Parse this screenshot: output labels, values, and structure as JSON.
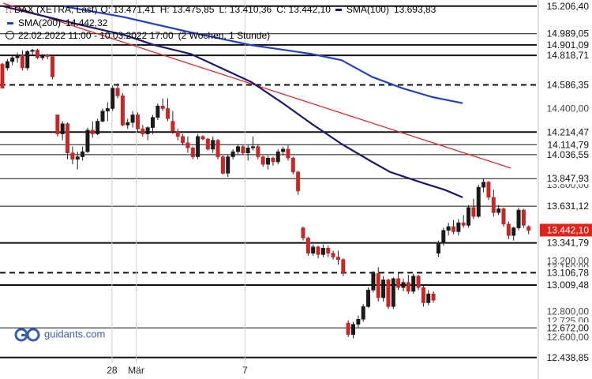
{
  "header": {
    "instrument": "DAX (XETRA, Last)",
    "open": "O: 13.471,41",
    "high": "H: 13.475,85",
    "low": "L: 13.410,36",
    "close": "C: 13.442,10",
    "sma100_label": "SMA(100)",
    "sma100_value": "13.693,83",
    "sma200_label": "SMA(200)",
    "sma200_value": "14.442,32",
    "range": "22.02.2022 11:00 - 10.03.2022 17:00",
    "interval": "(2 Wochen, 1 Stunde)"
  },
  "watermark": {
    "text": "guidants.com"
  },
  "colors": {
    "bull": "#1a1a1a",
    "bear": "#c62828",
    "sma100": "#1a1a6e",
    "sma200": "#2241c8",
    "trend": "#e02a2a",
    "last_price_bg": "#e0231b"
  },
  "chart_data": {
    "type": "candlestick",
    "ylim": [
      12400,
      15230
    ],
    "x_ticks": [
      {
        "label": "28",
        "index": 18
      },
      {
        "label": "Mär",
        "index": 22
      },
      {
        "label": "7",
        "index": 40
      }
    ],
    "y_tick_labels": [
      {
        "v": 14400.0,
        "label": "14.400,00"
      },
      {
        "v": 14050.0,
        "label": "14.050,00"
      },
      {
        "v": 13800.0,
        "label": "13.800,00"
      },
      {
        "v": 13200.0,
        "label": "13.200,00"
      },
      {
        "v": 13150.0,
        "label": "13.150,00"
      },
      {
        "v": 12800.0,
        "label": "12.800,00"
      },
      {
        "v": 12725.0,
        "label": "12.725,00"
      },
      {
        "v": 12600.0,
        "label": "12.600,00"
      }
    ],
    "levels": [
      {
        "v": 15206.4,
        "label": "15.206,40",
        "style": "solid",
        "weight": 2
      },
      {
        "v": 14989.05,
        "label": "14.989,05",
        "style": "solid",
        "weight": 1
      },
      {
        "v": 14901.09,
        "label": "14.901,09",
        "style": "solid",
        "weight": 2
      },
      {
        "v": 14818.71,
        "label": "14.818,71",
        "style": "solid",
        "weight": 2
      },
      {
        "v": 14586.35,
        "label": "14.586,35",
        "style": "dashed",
        "weight": 2
      },
      {
        "v": 14214.47,
        "label": "14.214,47",
        "style": "solid",
        "weight": 2
      },
      {
        "v": 14114.79,
        "label": "14.114,79",
        "style": "solid",
        "weight": 1
      },
      {
        "v": 14036.55,
        "label": "14.036,55",
        "style": "solid",
        "weight": 1
      },
      {
        "v": 13847.93,
        "label": "13.847,93",
        "style": "solid",
        "weight": 1
      },
      {
        "v": 13631.12,
        "label": "13.631,12",
        "style": "solid",
        "weight": 1
      },
      {
        "v": 13341.79,
        "label": "13.341,79",
        "style": "solid",
        "weight": 2
      },
      {
        "v": 13106.78,
        "label": "13.106,78",
        "style": "dashed",
        "weight": 2
      },
      {
        "v": 13009.48,
        "label": "13.009,48",
        "style": "solid",
        "weight": 2
      },
      {
        "v": 12672.0,
        "label": "12.672,00",
        "style": "solid",
        "weight": 1
      },
      {
        "v": 12438.85,
        "label": "12.438,85",
        "style": "solid",
        "weight": 2
      }
    ],
    "last_price": {
      "v": 13442.1,
      "label": "13.442,10"
    },
    "sma100": [
      {
        "i": 0,
        "v": 15206
      },
      {
        "i": 10,
        "v": 15090
      },
      {
        "i": 20,
        "v": 14980
      },
      {
        "i": 25,
        "v": 14900
      },
      {
        "i": 31,
        "v": 14830
      },
      {
        "i": 36,
        "v": 14720
      },
      {
        "i": 41,
        "v": 14610
      },
      {
        "i": 46,
        "v": 14450
      },
      {
        "i": 51,
        "v": 14280
      },
      {
        "i": 56,
        "v": 14120
      },
      {
        "i": 61,
        "v": 13980
      },
      {
        "i": 64,
        "v": 13900
      },
      {
        "i": 69,
        "v": 13820
      },
      {
        "i": 73,
        "v": 13760
      },
      {
        "i": 76,
        "v": 13700
      }
    ],
    "sma200": [
      {
        "i": 10,
        "v": 15206
      },
      {
        "i": 20,
        "v": 15120
      },
      {
        "i": 31,
        "v": 15000
      },
      {
        "i": 41,
        "v": 14900
      },
      {
        "i": 51,
        "v": 14830
      },
      {
        "i": 56,
        "v": 14780
      },
      {
        "i": 61,
        "v": 14650
      },
      {
        "i": 66,
        "v": 14560
      },
      {
        "i": 71,
        "v": 14490
      },
      {
        "i": 76,
        "v": 14442
      }
    ],
    "trendline": [
      {
        "i": 0,
        "v": 15230
      },
      {
        "i": 84,
        "v": 13930
      }
    ],
    "candles": [
      [
        14750,
        14760,
        14560,
        14560
      ],
      [
        14720,
        14790,
        14700,
        14770
      ],
      [
        14770,
        14820,
        14740,
        14800
      ],
      [
        14800,
        14840,
        14760,
        14820
      ],
      [
        14820,
        14860,
        14700,
        14720
      ],
      [
        14720,
        14860,
        14700,
        14850
      ],
      [
        14850,
        14870,
        14820,
        14860
      ],
      [
        14860,
        14870,
        14790,
        14800
      ],
      [
        14800,
        14830,
        14780,
        14820
      ],
      [
        14820,
        14830,
        14790,
        14810
      ],
      [
        14810,
        14810,
        14630,
        14650
      ],
      [
        14350,
        14350,
        14180,
        14200
      ],
      [
        14200,
        14300,
        14150,
        14280
      ],
      [
        14280,
        14290,
        14000,
        14050
      ],
      [
        14050,
        14100,
        13960,
        14000
      ],
      [
        14000,
        14060,
        13920,
        14020
      ],
      [
        14020,
        14100,
        13990,
        14060
      ],
      [
        14060,
        14250,
        14050,
        14230
      ],
      [
        14230,
        14300,
        14170,
        14200
      ],
      [
        14200,
        14320,
        14190,
        14300
      ],
      [
        14300,
        14400,
        14290,
        14380
      ],
      [
        14380,
        14450,
        14300,
        14400
      ],
      [
        14400,
        14580,
        14380,
        14560
      ],
      [
        14560,
        14600,
        14480,
        14500
      ],
      [
        14500,
        14520,
        14260,
        14270
      ],
      [
        14270,
        14320,
        14240,
        14290
      ],
      [
        14290,
        14380,
        14250,
        14350
      ],
      [
        14350,
        14370,
        14220,
        14240
      ],
      [
        14240,
        14270,
        14180,
        14200
      ],
      [
        14200,
        14260,
        14150,
        14250
      ],
      [
        14250,
        14350,
        14200,
        14330
      ],
      [
        14330,
        14440,
        14310,
        14420
      ],
      [
        14420,
        14480,
        14380,
        14400
      ],
      [
        14400,
        14480,
        14300,
        14320
      ],
      [
        14300,
        14380,
        14200,
        14220
      ],
      [
        14220,
        14240,
        14150,
        14180
      ],
      [
        14180,
        14200,
        14110,
        14130
      ],
      [
        14130,
        14180,
        14050,
        14090
      ],
      [
        14090,
        14100,
        14000,
        14020
      ],
      [
        14020,
        14200,
        14000,
        14180
      ]
    ],
    "candles_2": [
      [
        14180,
        14190,
        14150,
        14160
      ],
      [
        14160,
        14170,
        14070,
        14080
      ],
      [
        14080,
        14180,
        14050,
        14150
      ],
      [
        14150,
        14160,
        14000,
        14020
      ],
      [
        14020,
        14030,
        13880,
        13890
      ],
      [
        13890,
        14040,
        13860,
        14020
      ],
      [
        14020,
        14080,
        14000,
        14060
      ],
      [
        14060,
        14120,
        14040,
        14100
      ],
      [
        14100,
        14110,
        14040,
        14050
      ],
      [
        14050,
        14110,
        13990,
        14090
      ],
      [
        14090,
        14180,
        14070,
        14100
      ],
      [
        14100,
        14120,
        14000,
        14020
      ],
      [
        14020,
        14030,
        13940,
        13960
      ],
      [
        13960,
        14030,
        13920,
        14010
      ],
      [
        14010,
        14020,
        13950,
        13980
      ],
      [
        13980,
        14080,
        13960,
        14060
      ],
      [
        14060,
        14100,
        14030,
        14080
      ],
      [
        14080,
        14110,
        13990,
        14010
      ],
      [
        14010,
        14020,
        13880,
        13900
      ],
      [
        13900,
        13910,
        13720,
        13750
      ]
    ],
    "candles_3": [
      [
        13460,
        13470,
        13360,
        13380
      ],
      [
        13380,
        13390,
        13240,
        13260
      ],
      [
        13260,
        13330,
        13240,
        13310
      ],
      [
        13310,
        13320,
        13220,
        13250
      ],
      [
        13250,
        13330,
        13230,
        13300
      ],
      [
        13300,
        13320,
        13230,
        13260
      ],
      [
        13260,
        13280,
        13210,
        13230
      ],
      [
        13230,
        13280,
        13170,
        13210
      ],
      [
        13210,
        13220,
        13080,
        13100
      ],
      [
        12710,
        12730,
        12600,
        12620
      ],
      [
        12620,
        12720,
        12590,
        12700
      ],
      [
        12700,
        12770,
        12670,
        12740
      ],
      [
        12740,
        12860,
        12720,
        12840
      ],
      [
        12840,
        12990,
        12830,
        12970
      ],
      [
        12970,
        13120,
        12950,
        13100
      ],
      [
        13100,
        13150,
        12880,
        12910
      ],
      [
        12910,
        13080,
        12880,
        13050
      ],
      [
        13050,
        13060,
        12820,
        12840
      ],
      [
        12840,
        13070,
        12820,
        13060
      ],
      [
        13060,
        13100,
        12970,
        12990
      ],
      [
        12990,
        13060,
        12960,
        13030
      ],
      [
        13030,
        13090,
        12940,
        12960
      ],
      [
        12960,
        13100,
        12940,
        13080
      ],
      [
        13080,
        13090,
        12970,
        12990
      ],
      [
        12990,
        13010,
        12840,
        12870
      ],
      [
        12870,
        12970,
        12850,
        12940
      ],
      [
        12940,
        12960,
        12870,
        12890
      ]
    ],
    "candles_4": [
      [
        13260,
        13360,
        13230,
        13340
      ],
      [
        13340,
        13460,
        13320,
        13440
      ],
      [
        13440,
        13500,
        13400,
        13470
      ],
      [
        13470,
        13520,
        13410,
        13430
      ],
      [
        13430,
        13530,
        13400,
        13500
      ],
      [
        13500,
        13560,
        13460,
        13480
      ],
      [
        13480,
        13640,
        13460,
        13620
      ],
      [
        13620,
        13690,
        13530,
        13550
      ],
      [
        13550,
        13800,
        13540,
        13780
      ],
      [
        13780,
        13850,
        13740,
        13820
      ],
      [
        13820,
        13830,
        13680,
        13700
      ],
      [
        13700,
        13760,
        13550,
        13580
      ],
      [
        13580,
        13640,
        13560,
        13610
      ],
      [
        13610,
        13620,
        13470,
        13490
      ],
      [
        13490,
        13510,
        13370,
        13400
      ],
      [
        13400,
        13470,
        13360,
        13460
      ],
      [
        13460,
        13620,
        13440,
        13600
      ],
      [
        13600,
        13610,
        13460,
        13480
      ],
      [
        13470,
        13480,
        13410,
        13440
      ]
    ]
  }
}
